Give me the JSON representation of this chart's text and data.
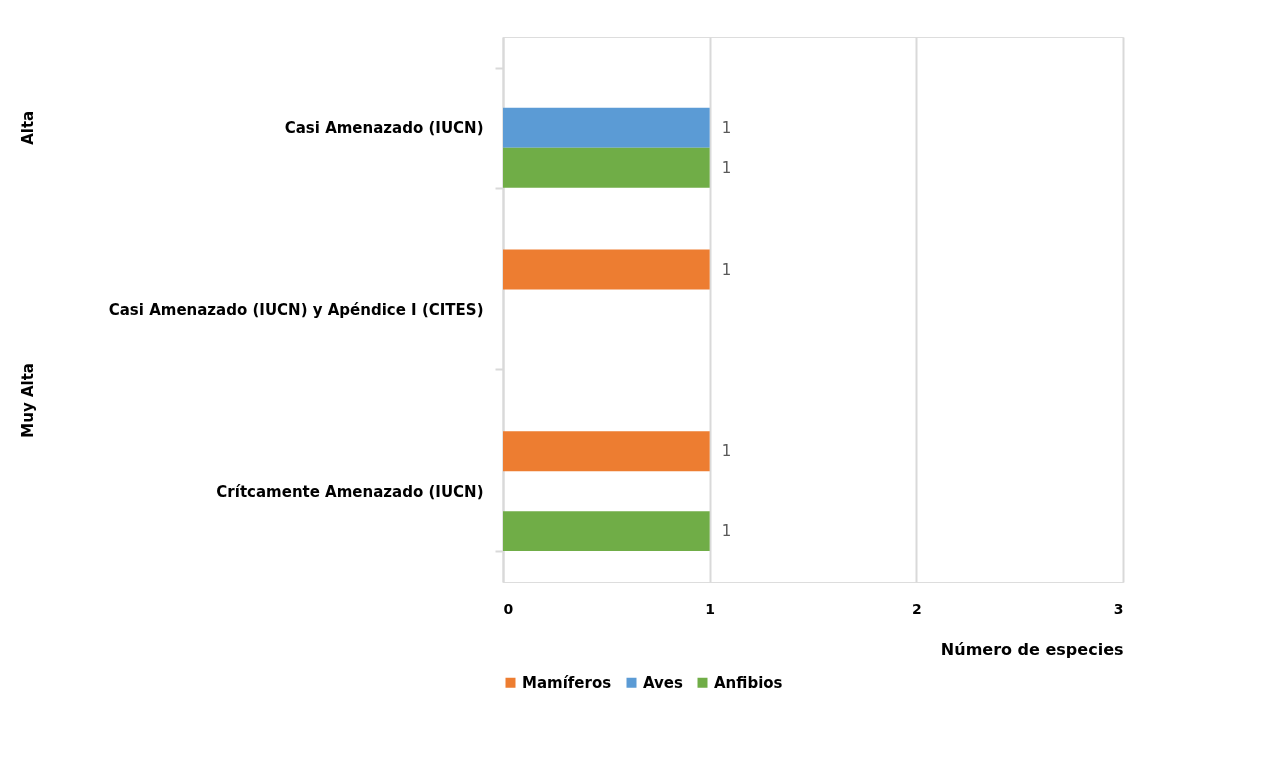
{
  "chart_data": {
    "type": "bar",
    "orientation": "horizontal",
    "categories": [
      "Casi Amenazado (IUCN)",
      "Casi Amenazado (IUCN) y Apéndice I (CITES)",
      "Crítcamente Amenazado (IUCN)"
    ],
    "series": [
      {
        "name": "Mamíferos",
        "color": "#ed7d31",
        "values": [
          null,
          1,
          1
        ]
      },
      {
        "name": "Aves",
        "color": "#5b9bd5",
        "values": [
          1,
          null,
          null
        ]
      },
      {
        "name": "Anfibios",
        "color": "#70ad47",
        "values": [
          1,
          null,
          1
        ]
      }
    ],
    "xlabel": "Número de especies",
    "xlim": [
      0,
      3
    ],
    "xticks": [
      0,
      1,
      2,
      3
    ],
    "grid": "x",
    "legend": "bottom",
    "data_labels": true,
    "annotations": [
      "Alta",
      "Muy Alta"
    ]
  }
}
